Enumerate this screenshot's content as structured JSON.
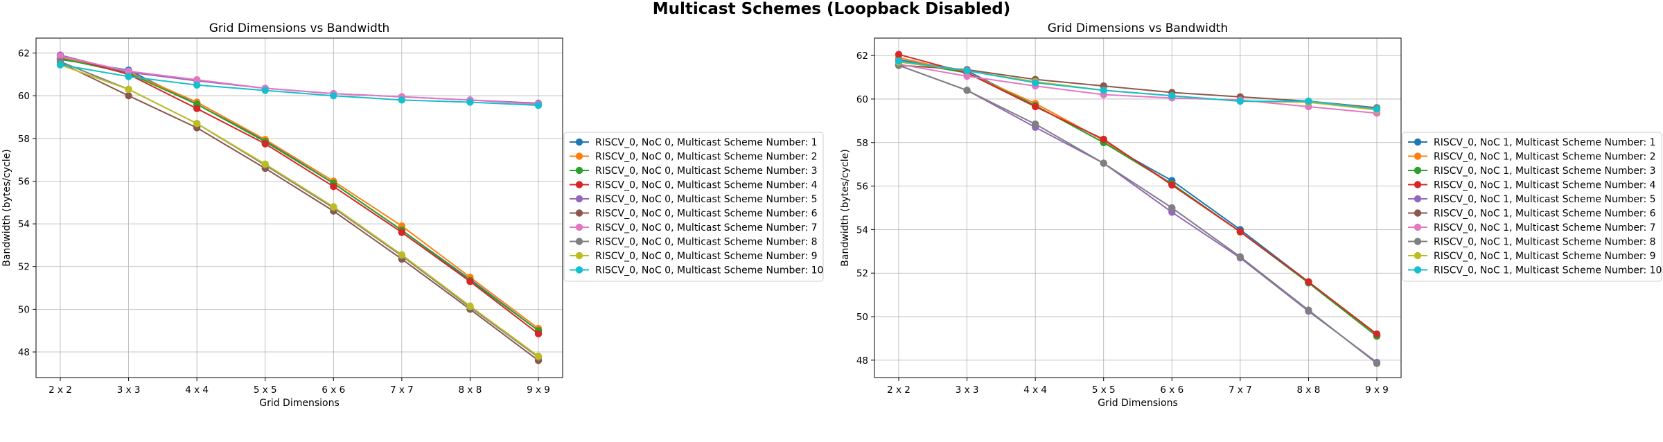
{
  "suptitle": "Multicast Schemes (Loopback Disabled)",
  "chart_data": [
    {
      "type": "line",
      "title": "Grid Dimensions vs Bandwidth",
      "xlabel": "Grid Dimensions",
      "ylabel": "Bandwidth (bytes/cycle)",
      "categories": [
        "2 x 2",
        "3 x 3",
        "4 x 4",
        "5 x 5",
        "6 x 6",
        "7 x 7",
        "8 x 8",
        "9 x 9"
      ],
      "ylim": [
        46.8,
        62.7
      ],
      "yticks": [
        48,
        50,
        52,
        54,
        56,
        58,
        60,
        62
      ],
      "grid": true,
      "legend_position": "right-outside",
      "series": [
        {
          "name": "RISCV_0, NoC 0, Multicast Scheme Number: 1",
          "color": "#1f77b4",
          "values": [
            61.7,
            61.2,
            59.6,
            57.9,
            55.9,
            53.7,
            51.4,
            49.0
          ]
        },
        {
          "name": "RISCV_0, NoC 0, Multicast Scheme Number: 2",
          "color": "#ff7f0e",
          "values": [
            61.8,
            61.1,
            59.7,
            57.95,
            56.0,
            53.9,
            51.5,
            49.1
          ]
        },
        {
          "name": "RISCV_0, NoC 0, Multicast Scheme Number: 3",
          "color": "#2ca02c",
          "values": [
            61.75,
            61.05,
            59.6,
            57.85,
            55.9,
            53.7,
            51.35,
            49.0
          ]
        },
        {
          "name": "RISCV_0, NoC 0, Multicast Scheme Number: 4",
          "color": "#d62728",
          "values": [
            61.9,
            61.0,
            59.4,
            57.75,
            55.75,
            53.6,
            51.3,
            48.85
          ]
        },
        {
          "name": "RISCV_0, NoC 0, Multicast Scheme Number: 5",
          "color": "#9467bd",
          "values": [
            61.9,
            61.1,
            60.7,
            60.35,
            60.1,
            59.95,
            59.8,
            59.65
          ]
        },
        {
          "name": "RISCV_0, NoC 0, Multicast Scheme Number: 6",
          "color": "#8c564b",
          "values": [
            61.55,
            60.0,
            58.5,
            56.6,
            54.6,
            52.35,
            50.0,
            47.6
          ]
        },
        {
          "name": "RISCV_0, NoC 0, Multicast Scheme Number: 7",
          "color": "#e377c2",
          "values": [
            61.85,
            61.15,
            60.75,
            60.35,
            60.1,
            59.95,
            59.8,
            59.6
          ]
        },
        {
          "name": "RISCV_0, NoC 0, Multicast Scheme Number: 8",
          "color": "#7f7f7f",
          "values": [
            61.6,
            60.3,
            58.7,
            56.75,
            54.75,
            52.5,
            50.1,
            47.75
          ]
        },
        {
          "name": "RISCV_0, NoC 0, Multicast Scheme Number: 9",
          "color": "#bcbd22",
          "values": [
            61.45,
            60.3,
            58.7,
            56.8,
            54.8,
            52.55,
            50.15,
            47.8
          ]
        },
        {
          "name": "RISCV_0, NoC 0, Multicast Scheme Number: 10",
          "color": "#17becf",
          "values": [
            61.45,
            60.9,
            60.5,
            60.25,
            60.0,
            59.8,
            59.7,
            59.55
          ]
        }
      ]
    },
    {
      "type": "line",
      "title": "Grid Dimensions vs Bandwidth",
      "xlabel": "Grid Dimensions",
      "ylabel": "Bandwidth (bytes/cycle)",
      "categories": [
        "2 x 2",
        "3 x 3",
        "4 x 4",
        "5 x 5",
        "6 x 6",
        "7 x 7",
        "8 x 8",
        "9 x 9"
      ],
      "ylim": [
        47.2,
        62.8
      ],
      "yticks": [
        48,
        50,
        52,
        54,
        56,
        58,
        60,
        62
      ],
      "grid": true,
      "legend_position": "right-outside",
      "series": [
        {
          "name": "RISCV_0, NoC 1, Multicast Scheme Number: 1",
          "color": "#1f77b4",
          "values": [
            61.8,
            61.3,
            59.7,
            58.0,
            56.25,
            54.0,
            51.6,
            49.15
          ]
        },
        {
          "name": "RISCV_0, NoC 1, Multicast Scheme Number: 2",
          "color": "#ff7f0e",
          "values": [
            61.9,
            61.2,
            59.8,
            58.1,
            56.1,
            53.9,
            51.6,
            49.15
          ]
        },
        {
          "name": "RISCV_0, NoC 1, Multicast Scheme Number: 3",
          "color": "#2ca02c",
          "values": [
            61.75,
            61.2,
            59.7,
            58.0,
            56.1,
            53.9,
            51.55,
            49.1
          ]
        },
        {
          "name": "RISCV_0, NoC 1, Multicast Scheme Number: 4",
          "color": "#d62728",
          "values": [
            62.05,
            61.2,
            59.65,
            58.15,
            56.05,
            53.9,
            51.6,
            49.2
          ]
        },
        {
          "name": "RISCV_0, NoC 1, Multicast Scheme Number: 5",
          "color": "#9467bd",
          "values": [
            61.55,
            60.4,
            58.7,
            57.05,
            54.8,
            52.7,
            50.25,
            47.9
          ]
        },
        {
          "name": "RISCV_0, NoC 1, Multicast Scheme Number: 6",
          "color": "#8c564b",
          "values": [
            61.55,
            61.35,
            60.9,
            60.6,
            60.3,
            60.1,
            59.9,
            59.6
          ]
        },
        {
          "name": "RISCV_0, NoC 1, Multicast Scheme Number: 7",
          "color": "#e377c2",
          "values": [
            61.6,
            61.05,
            60.6,
            60.2,
            60.05,
            59.95,
            59.65,
            59.35
          ]
        },
        {
          "name": "RISCV_0, NoC 1, Multicast Scheme Number: 8",
          "color": "#7f7f7f",
          "values": [
            61.55,
            60.4,
            58.85,
            57.05,
            55.0,
            52.75,
            50.3,
            47.85
          ]
        },
        {
          "name": "RISCV_0, NoC 1, Multicast Scheme Number: 9",
          "color": "#bcbd22",
          "values": [
            61.7,
            61.3,
            60.8,
            60.4,
            60.15,
            59.9,
            59.85,
            59.5
          ]
        },
        {
          "name": "RISCV_0, NoC 1, Multicast Scheme Number: 10",
          "color": "#17becf",
          "values": [
            61.75,
            61.3,
            60.75,
            60.4,
            60.15,
            59.9,
            59.9,
            59.55
          ]
        }
      ]
    }
  ]
}
